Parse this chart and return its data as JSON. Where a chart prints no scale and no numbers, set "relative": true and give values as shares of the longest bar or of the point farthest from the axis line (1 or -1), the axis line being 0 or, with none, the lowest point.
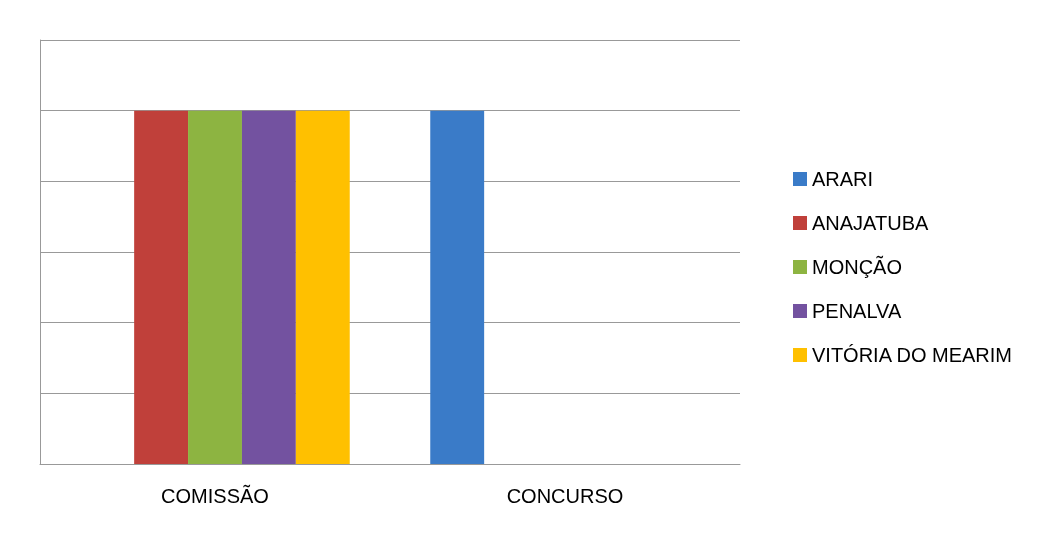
{
  "chart_data": {
    "type": "bar",
    "relative": true,
    "categories": [
      "COMISSÃO",
      "CONCURSO"
    ],
    "series": [
      {
        "name": "ARARI",
        "color": "#3a7bc8",
        "values": [
          null,
          1
        ]
      },
      {
        "name": "ANAJATUBA",
        "color": "#c0403a",
        "values": [
          1,
          null
        ]
      },
      {
        "name": "MONÇÃO",
        "color": "#8db441",
        "values": [
          1,
          null
        ]
      },
      {
        "name": "PENALVA",
        "color": "#7352a0",
        "values": [
          1,
          null
        ]
      },
      {
        "name": "VITÓRIA DO MEARIM",
        "color": "#ffc000",
        "values": [
          1,
          null
        ]
      }
    ],
    "grid": "y",
    "legend": "right"
  }
}
